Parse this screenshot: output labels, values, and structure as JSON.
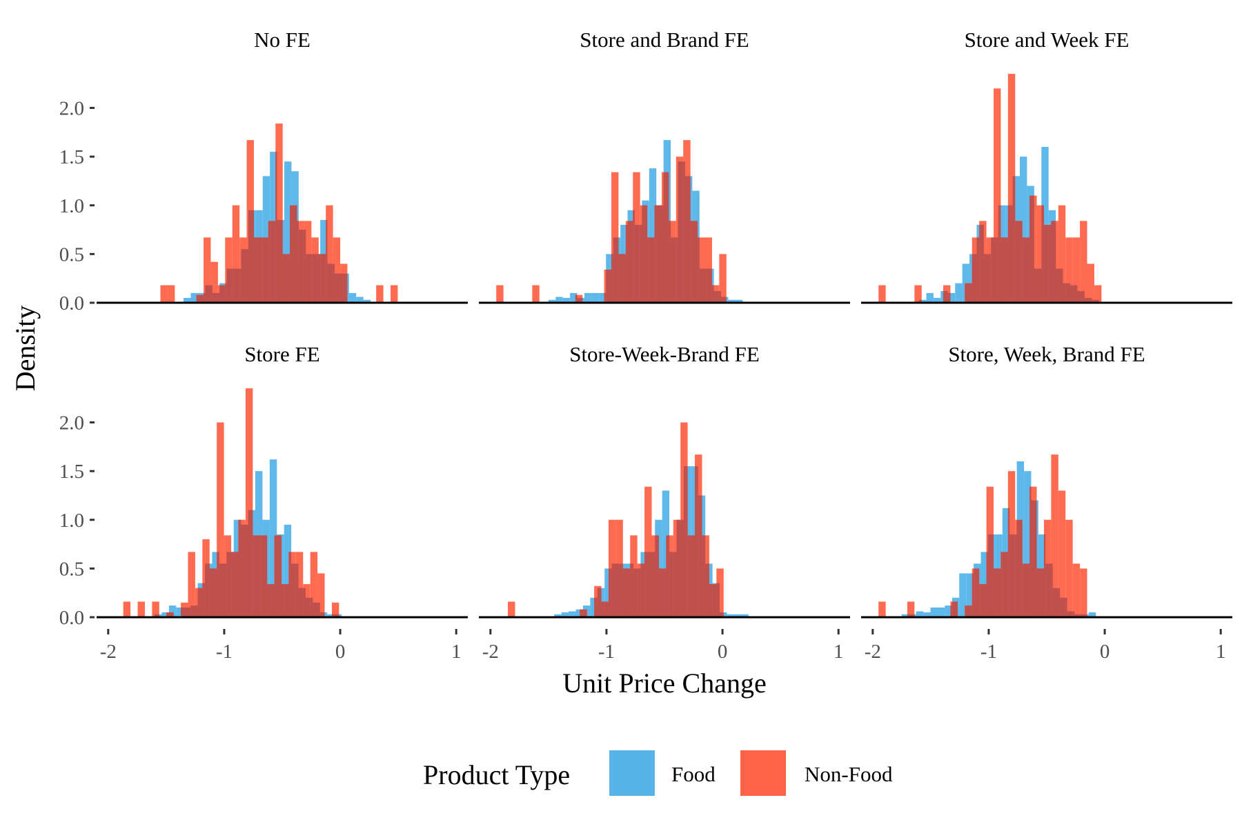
{
  "chart_data": {
    "type": "bar",
    "subtype": "faceted-histogram",
    "xlabel": "Unit Price Change",
    "ylabel": "Density",
    "xlim": [
      -2.1,
      1.1
    ],
    "ylim": [
      0,
      2.4
    ],
    "xticks": [
      -2,
      -1,
      0,
      1
    ],
    "xtick_labels": [
      "-2",
      "-1",
      "0",
      "1"
    ],
    "yticks": [
      0,
      0.5,
      1,
      1.5,
      2
    ],
    "ytick_labels": [
      "0.0",
      "0.5",
      "1.0",
      "1.5",
      "2.0"
    ],
    "grid": false,
    "legend": {
      "title": "Product Type",
      "position": "bottom",
      "entries": [
        {
          "label": "Food",
          "color": "#56B4E9"
        },
        {
          "label": "Non-Food",
          "color": "#FF6347"
        }
      ]
    },
    "overlap_color": "#C0504D",
    "panels": [
      {
        "title": "No FE",
        "row": 0,
        "col": 0,
        "series": [
          {
            "name": "Food",
            "bin_edges_start": -1.35,
            "bin_width": 0.062,
            "values": [
              0.05,
              0.1,
              0.1,
              0.18,
              0.1,
              0.2,
              0.35,
              0.35,
              0.55,
              0.95,
              0.95,
              1.3,
              1.55,
              0.85,
              1.45,
              1.35,
              0.75,
              0.5,
              0.5,
              0.85,
              0.4,
              0.3,
              0.3,
              0.1,
              0.06,
              0.03
            ]
          },
          {
            "name": "Non-Food",
            "bin_edges_start": -1.55,
            "bin_width": 0.062,
            "values": [
              0.18,
              0.18,
              0.0,
              0.0,
              0.0,
              0.08,
              0.67,
              0.42,
              0.18,
              0.67,
              1.0,
              0.67,
              1.67,
              0.67,
              0.67,
              0.84,
              1.84,
              0.5,
              1.0,
              0.84,
              0.84,
              0.67,
              0.5,
              1.0,
              0.67,
              0.4,
              0.0,
              0.0,
              0.0,
              0.0,
              0.18,
              0.0,
              0.18
            ]
          }
        ]
      },
      {
        "title": "Store and Brand FE",
        "row": 0,
        "col": 1,
        "series": [
          {
            "name": "Food",
            "bin_edges_start": -1.5,
            "bin_width": 0.062,
            "values": [
              0.03,
              0.06,
              0.05,
              0.1,
              0.05,
              0.1,
              0.1,
              0.1,
              0.5,
              0.67,
              0.8,
              0.95,
              0.8,
              1.05,
              1.38,
              1.0,
              1.67,
              0.67,
              1.45,
              1.3,
              1.15,
              0.35,
              0.35,
              0.12,
              0.06,
              0.03,
              0.03
            ]
          },
          {
            "name": "Non-Food",
            "bin_edges_start": -1.95,
            "bin_width": 0.062,
            "values": [
              0.18,
              0.0,
              0.0,
              0.0,
              0.0,
              0.18,
              0.0,
              0.0,
              0.0,
              0.0,
              0.0,
              0.08,
              0.0,
              0.0,
              0.0,
              0.34,
              1.34,
              0.5,
              0.84,
              1.34,
              1.0,
              0.67,
              1.0,
              1.34,
              0.84,
              1.5,
              1.67,
              0.84,
              0.67,
              0.67,
              0.18,
              0.5,
              0.0
            ]
          }
        ]
      },
      {
        "title": "Store and Week FE",
        "row": 0,
        "col": 2,
        "series": [
          {
            "name": "Food",
            "bin_edges_start": -1.6,
            "bin_width": 0.062,
            "values": [
              0.03,
              0.1,
              0.05,
              0.12,
              0.1,
              0.2,
              0.4,
              0.5,
              0.8,
              0.5,
              0.67,
              1.0,
              1.0,
              1.3,
              1.5,
              1.2,
              0.35,
              1.6,
              0.95,
              0.35,
              0.2,
              0.18,
              0.12,
              0.05,
              0.03
            ]
          },
          {
            "name": "Non-Food",
            "bin_edges_start": -1.95,
            "bin_width": 0.062,
            "values": [
              0.18,
              0.0,
              0.0,
              0.0,
              0.0,
              0.18,
              0.0,
              0.0,
              0.0,
              0.18,
              0.0,
              0.0,
              0.2,
              0.67,
              0.84,
              0.67,
              2.2,
              0.67,
              2.35,
              0.84,
              0.67,
              1.1,
              1.0,
              0.8,
              0.84,
              1.0,
              0.67,
              0.67,
              0.84,
              0.4,
              0.18,
              0.0
            ]
          }
        ]
      },
      {
        "title": "Store FE",
        "row": 1,
        "col": 0,
        "series": [
          {
            "name": "Food",
            "bin_edges_start": -1.6,
            "bin_width": 0.062,
            "values": [
              0.03,
              0.05,
              0.12,
              0.1,
              0.1,
              0.12,
              0.35,
              0.55,
              0.67,
              0.55,
              0.67,
              1.0,
              0.95,
              1.1,
              1.5,
              1.0,
              1.62,
              0.85,
              0.95,
              0.55,
              0.3,
              0.2,
              0.15,
              0.05,
              0.03,
              0.03
            ]
          },
          {
            "name": "Non-Food",
            "bin_edges_start": -1.87,
            "bin_width": 0.062,
            "values": [
              0.16,
              0.0,
              0.16,
              0.0,
              0.16,
              0.0,
              0.05,
              0.0,
              0.15,
              0.67,
              0.3,
              0.8,
              0.5,
              2.0,
              0.84,
              0.67,
              1.0,
              2.35,
              0.84,
              0.84,
              0.34,
              0.84,
              0.34,
              0.67,
              0.67,
              0.34,
              0.67,
              0.45,
              0.0,
              0.15
            ]
          }
        ]
      },
      {
        "title": "Store-Week-Brand FE",
        "row": 1,
        "col": 1,
        "series": [
          {
            "name": "Food",
            "bin_edges_start": -1.45,
            "bin_width": 0.062,
            "values": [
              0.03,
              0.05,
              0.06,
              0.08,
              0.12,
              0.2,
              0.3,
              0.5,
              0.55,
              0.55,
              0.55,
              0.5,
              0.67,
              0.67,
              1.0,
              1.3,
              0.67,
              1.0,
              1.55,
              1.55,
              1.25,
              0.55,
              0.35,
              0.05,
              0.03,
              0.03,
              0.03
            ]
          },
          {
            "name": "Non-Food",
            "bin_edges_start": -1.85,
            "bin_width": 0.062,
            "values": [
              0.16,
              0.0,
              0.0,
              0.0,
              0.0,
              0.0,
              0.0,
              0.0,
              0.0,
              0.0,
              0.08,
              0.0,
              0.32,
              0.16,
              1.0,
              1.0,
              0.5,
              0.84,
              0.55,
              1.34,
              0.84,
              0.5,
              0.84,
              1.0,
              2.0,
              0.84,
              1.67,
              0.84,
              0.34,
              0.5,
              0.0
            ]
          }
        ]
      },
      {
        "title": "Store, Week, Brand FE",
        "row": 1,
        "col": 2,
        "series": [
          {
            "name": "Food",
            "bin_edges_start": -1.75,
            "bin_width": 0.062,
            "values": [
              0.03,
              0.03,
              0.06,
              0.05,
              0.1,
              0.1,
              0.12,
              0.2,
              0.45,
              0.45,
              0.55,
              0.67,
              0.85,
              0.85,
              1.12,
              0.85,
              1.6,
              1.5,
              1.2,
              0.85,
              0.55,
              0.3,
              0.2,
              0.06,
              0.03,
              0.03,
              0.05
            ]
          },
          {
            "name": "Non-Food",
            "bin_edges_start": -1.95,
            "bin_width": 0.062,
            "values": [
              0.16,
              0.0,
              0.0,
              0.0,
              0.16,
              0.0,
              0.0,
              0.0,
              0.0,
              0.0,
              0.16,
              0.0,
              0.12,
              0.5,
              0.34,
              1.34,
              0.5,
              0.67,
              1.5,
              1.0,
              0.55,
              1.34,
              0.5,
              1.0,
              1.67,
              1.3,
              1.0,
              0.55,
              0.5,
              0.0
            ]
          }
        ]
      }
    ]
  }
}
